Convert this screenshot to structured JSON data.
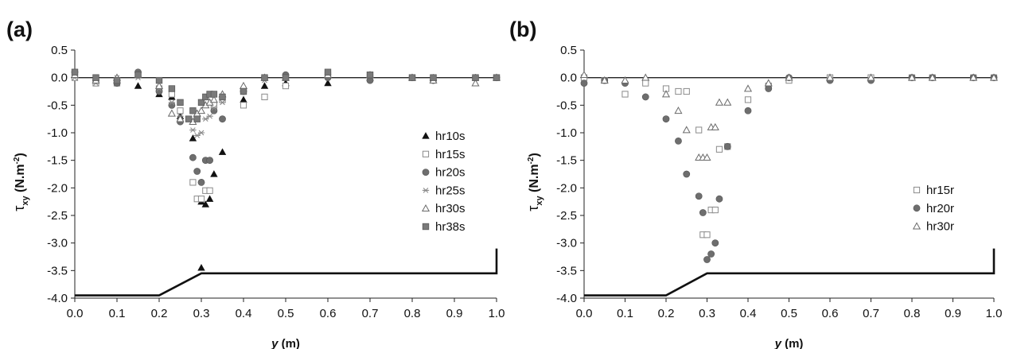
{
  "chart_data": [
    {
      "type": "scatter",
      "panel_label": "(a)",
      "xlabel": "y",
      "xlabel_unit": " (m)",
      "ylabel_symbol": "τ",
      "ylabel_sub": "xy",
      "ylabel_unit": " (N.m",
      "ylabel_sup": "-2",
      "ylabel_close": ")",
      "xlim": [
        0.0,
        1.0
      ],
      "ylim": [
        -4.0,
        0.5
      ],
      "xticks": [
        "0.0",
        "0.1",
        "0.2",
        "0.3",
        "0.4",
        "0.5",
        "0.6",
        "0.7",
        "0.8",
        "0.9",
        "1.0"
      ],
      "yticks": [
        "0.5",
        "0.0",
        "-0.5",
        "-1.0",
        "-1.5",
        "-2.0",
        "-2.5",
        "-3.0",
        "-3.5",
        "-4.0"
      ],
      "legend_position": "right",
      "channel_profile": [
        [
          0.0,
          -3.95
        ],
        [
          0.2,
          -3.95
        ],
        [
          0.3,
          -3.55
        ],
        [
          1.0,
          -3.55
        ],
        [
          1.0,
          -3.1
        ]
      ],
      "series": [
        {
          "name": "hr10s",
          "marker": "triangle-filled",
          "points": [
            [
              0.0,
              0.05
            ],
            [
              0.05,
              -0.05
            ],
            [
              0.1,
              -0.05
            ],
            [
              0.15,
              -0.15
            ],
            [
              0.2,
              -0.3
            ],
            [
              0.23,
              -0.35
            ],
            [
              0.25,
              -0.7
            ],
            [
              0.28,
              -1.1
            ],
            [
              0.3,
              -2.25
            ],
            [
              0.31,
              -2.3
            ],
            [
              0.32,
              -2.2
            ],
            [
              0.33,
              -1.75
            ],
            [
              0.35,
              -1.35
            ],
            [
              0.4,
              -0.4
            ],
            [
              0.45,
              -0.15
            ],
            [
              0.5,
              -0.1
            ],
            [
              0.6,
              -0.1
            ],
            [
              0.7,
              0.0
            ],
            [
              0.8,
              0.0
            ],
            [
              0.85,
              0.0
            ],
            [
              0.95,
              0.0
            ],
            [
              1.0,
              0.0
            ],
            [
              0.3,
              -3.45
            ]
          ]
        },
        {
          "name": "hr15s",
          "marker": "square-open",
          "points": [
            [
              0.0,
              0.0
            ],
            [
              0.05,
              -0.1
            ],
            [
              0.1,
              -0.1
            ],
            [
              0.15,
              0.05
            ],
            [
              0.2,
              -0.2
            ],
            [
              0.23,
              -0.3
            ],
            [
              0.25,
              -0.6
            ],
            [
              0.28,
              -1.9
            ],
            [
              0.29,
              -2.2
            ],
            [
              0.3,
              -2.2
            ],
            [
              0.31,
              -2.05
            ],
            [
              0.32,
              -2.05
            ],
            [
              0.33,
              -0.5
            ],
            [
              0.35,
              -0.4
            ],
            [
              0.4,
              -0.5
            ],
            [
              0.45,
              -0.35
            ],
            [
              0.5,
              -0.15
            ],
            [
              0.6,
              0.05
            ],
            [
              0.7,
              0.05
            ],
            [
              0.8,
              0.0
            ],
            [
              0.85,
              0.0
            ],
            [
              0.95,
              0.0
            ],
            [
              1.0,
              0.0
            ]
          ]
        },
        {
          "name": "hr20s",
          "marker": "circle-filled",
          "points": [
            [
              0.0,
              0.1
            ],
            [
              0.05,
              -0.05
            ],
            [
              0.1,
              -0.1
            ],
            [
              0.15,
              0.1
            ],
            [
              0.2,
              -0.25
            ],
            [
              0.23,
              -0.5
            ],
            [
              0.25,
              -0.8
            ],
            [
              0.28,
              -1.45
            ],
            [
              0.29,
              -1.7
            ],
            [
              0.3,
              -1.9
            ],
            [
              0.31,
              -1.5
            ],
            [
              0.32,
              -1.5
            ],
            [
              0.33,
              -0.6
            ],
            [
              0.35,
              -0.75
            ],
            [
              0.4,
              -0.25
            ],
            [
              0.45,
              0.0
            ],
            [
              0.5,
              0.05
            ],
            [
              0.6,
              0.0
            ],
            [
              0.7,
              -0.05
            ],
            [
              0.8,
              0.0
            ],
            [
              0.85,
              -0.05
            ],
            [
              0.95,
              0.0
            ],
            [
              1.0,
              0.0
            ]
          ]
        },
        {
          "name": "hr25s",
          "marker": "star",
          "points": [
            [
              0.0,
              0.0
            ],
            [
              0.05,
              -0.1
            ],
            [
              0.1,
              0.0
            ],
            [
              0.15,
              0.0
            ],
            [
              0.2,
              -0.2
            ],
            [
              0.23,
              -0.45
            ],
            [
              0.25,
              -0.7
            ],
            [
              0.28,
              -0.95
            ],
            [
              0.29,
              -1.05
            ],
            [
              0.3,
              -1.0
            ],
            [
              0.31,
              -0.75
            ],
            [
              0.32,
              -0.7
            ],
            [
              0.33,
              -0.55
            ],
            [
              0.35,
              -0.45
            ],
            [
              0.4,
              -0.2
            ],
            [
              0.45,
              -0.05
            ],
            [
              0.5,
              0.0
            ],
            [
              0.6,
              0.05
            ],
            [
              0.7,
              0.05
            ],
            [
              0.8,
              0.0
            ],
            [
              0.85,
              0.0
            ],
            [
              0.95,
              0.0
            ],
            [
              1.0,
              0.0
            ]
          ]
        },
        {
          "name": "hr30s",
          "marker": "triangle-open",
          "points": [
            [
              0.0,
              0.05
            ],
            [
              0.05,
              -0.05
            ],
            [
              0.1,
              0.0
            ],
            [
              0.15,
              0.05
            ],
            [
              0.2,
              -0.15
            ],
            [
              0.23,
              -0.65
            ],
            [
              0.25,
              -0.75
            ],
            [
              0.28,
              -0.8
            ],
            [
              0.29,
              -0.65
            ],
            [
              0.3,
              -0.6
            ],
            [
              0.31,
              -0.5
            ],
            [
              0.32,
              -0.45
            ],
            [
              0.33,
              -0.4
            ],
            [
              0.35,
              -0.3
            ],
            [
              0.4,
              -0.15
            ],
            [
              0.45,
              0.0
            ],
            [
              0.5,
              0.0
            ],
            [
              0.6,
              0.05
            ],
            [
              0.7,
              0.05
            ],
            [
              0.8,
              0.0
            ],
            [
              0.85,
              -0.05
            ],
            [
              0.95,
              -0.1
            ],
            [
              1.0,
              0.0
            ]
          ]
        },
        {
          "name": "hr38s",
          "marker": "square-filled",
          "points": [
            [
              0.0,
              0.1
            ],
            [
              0.05,
              0.0
            ],
            [
              0.1,
              -0.05
            ],
            [
              0.15,
              0.05
            ],
            [
              0.2,
              -0.05
            ],
            [
              0.23,
              -0.2
            ],
            [
              0.25,
              -0.45
            ],
            [
              0.27,
              -0.75
            ],
            [
              0.28,
              -0.6
            ],
            [
              0.29,
              -0.75
            ],
            [
              0.3,
              -0.45
            ],
            [
              0.31,
              -0.35
            ],
            [
              0.32,
              -0.3
            ],
            [
              0.33,
              -0.3
            ],
            [
              0.35,
              -0.35
            ],
            [
              0.4,
              -0.25
            ],
            [
              0.45,
              0.0
            ],
            [
              0.5,
              0.0
            ],
            [
              0.6,
              0.1
            ],
            [
              0.7,
              0.05
            ],
            [
              0.8,
              0.0
            ],
            [
              0.85,
              0.0
            ],
            [
              0.95,
              0.0
            ],
            [
              1.0,
              0.0
            ]
          ]
        }
      ]
    },
    {
      "type": "scatter",
      "panel_label": "(b)",
      "xlabel": "y",
      "xlabel_unit": " (m)",
      "ylabel_symbol": "τ",
      "ylabel_sub": "xy",
      "ylabel_unit": " (N.m",
      "ylabel_sup": "-2",
      "ylabel_close": ")",
      "xlim": [
        0.0,
        1.0
      ],
      "ylim": [
        -4.0,
        0.5
      ],
      "xticks": [
        "0.0",
        "0.1",
        "0.2",
        "0.3",
        "0.4",
        "0.5",
        "0.6",
        "0.7",
        "0.8",
        "0.9",
        "1.0"
      ],
      "yticks": [
        "0.5",
        "0.0",
        "-0.5",
        "-1.0",
        "-1.5",
        "-2.0",
        "-2.5",
        "-3.0",
        "-3.5",
        "-4.0"
      ],
      "legend_position": "right",
      "channel_profile": [
        [
          0.0,
          -3.95
        ],
        [
          0.2,
          -3.95
        ],
        [
          0.3,
          -3.55
        ],
        [
          1.0,
          -3.55
        ],
        [
          1.0,
          -3.1
        ]
      ],
      "series": [
        {
          "name": "hr15r",
          "marker": "square-open",
          "points": [
            [
              0.0,
              0.0
            ],
            [
              0.05,
              -0.05
            ],
            [
              0.1,
              -0.3
            ],
            [
              0.15,
              -0.1
            ],
            [
              0.2,
              -0.2
            ],
            [
              0.23,
              -0.25
            ],
            [
              0.25,
              -0.25
            ],
            [
              0.28,
              -0.95
            ],
            [
              0.29,
              -2.85
            ],
            [
              0.3,
              -2.85
            ],
            [
              0.31,
              -2.4
            ],
            [
              0.32,
              -2.4
            ],
            [
              0.33,
              -1.3
            ],
            [
              0.35,
              -1.25
            ],
            [
              0.4,
              -0.4
            ],
            [
              0.45,
              -0.15
            ],
            [
              0.5,
              -0.05
            ],
            [
              0.6,
              0.0
            ],
            [
              0.7,
              0.0
            ],
            [
              0.8,
              0.0
            ],
            [
              0.85,
              0.0
            ],
            [
              0.95,
              0.0
            ],
            [
              1.0,
              0.0
            ]
          ]
        },
        {
          "name": "hr20r",
          "marker": "circle-filled",
          "points": [
            [
              0.0,
              -0.1
            ],
            [
              0.05,
              -0.05
            ],
            [
              0.1,
              -0.1
            ],
            [
              0.15,
              -0.35
            ],
            [
              0.2,
              -0.75
            ],
            [
              0.23,
              -1.15
            ],
            [
              0.25,
              -1.75
            ],
            [
              0.28,
              -2.15
            ],
            [
              0.29,
              -2.45
            ],
            [
              0.3,
              -3.3
            ],
            [
              0.31,
              -3.2
            ],
            [
              0.32,
              -3.0
            ],
            [
              0.33,
              -2.2
            ],
            [
              0.35,
              -1.25
            ],
            [
              0.4,
              -0.6
            ],
            [
              0.45,
              -0.2
            ],
            [
              0.5,
              0.0
            ],
            [
              0.6,
              -0.05
            ],
            [
              0.7,
              -0.05
            ],
            [
              0.8,
              0.0
            ],
            [
              0.85,
              0.0
            ],
            [
              0.95,
              0.0
            ],
            [
              1.0,
              0.0
            ]
          ]
        },
        {
          "name": "hr30r",
          "marker": "triangle-open",
          "points": [
            [
              0.0,
              0.05
            ],
            [
              0.05,
              -0.05
            ],
            [
              0.1,
              -0.05
            ],
            [
              0.15,
              0.0
            ],
            [
              0.2,
              -0.3
            ],
            [
              0.23,
              -0.6
            ],
            [
              0.25,
              -0.95
            ],
            [
              0.28,
              -1.45
            ],
            [
              0.29,
              -1.45
            ],
            [
              0.3,
              -1.45
            ],
            [
              0.31,
              -0.9
            ],
            [
              0.32,
              -0.9
            ],
            [
              0.33,
              -0.45
            ],
            [
              0.35,
              -0.45
            ],
            [
              0.4,
              -0.2
            ],
            [
              0.45,
              -0.1
            ],
            [
              0.5,
              0.0
            ],
            [
              0.6,
              0.0
            ],
            [
              0.7,
              0.0
            ],
            [
              0.8,
              0.0
            ],
            [
              0.85,
              0.0
            ],
            [
              0.95,
              0.0
            ],
            [
              1.0,
              0.0
            ]
          ]
        }
      ]
    }
  ]
}
